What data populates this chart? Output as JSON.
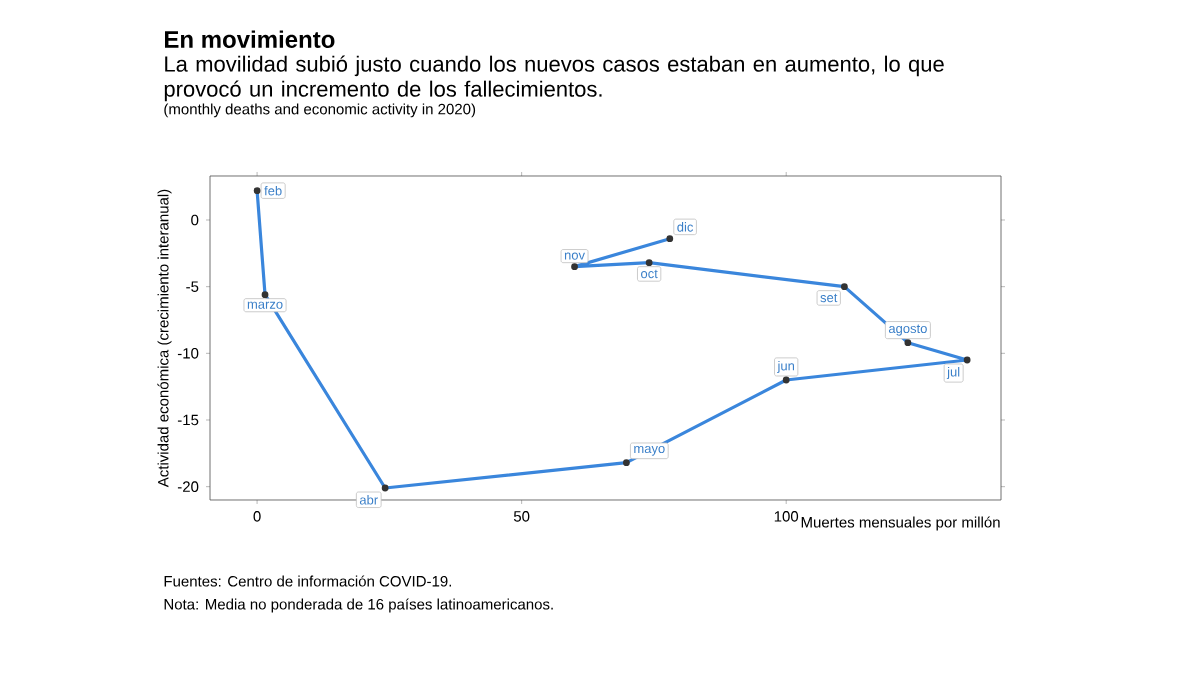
{
  "chart_data": {
    "type": "line",
    "title": "En movimiento",
    "subtitle": "La movilidad subió justo cuando los nuevos casos estaban en aumento, lo que provocó un incremento de los fallecimientos.",
    "xlabel": "Muertes mensuales por millón",
    "ylabel": "Actividad económica (crecimiento interanual)",
    "x": [
      0,
      1.5,
      24.2,
      69.8,
      100,
      134.2,
      123,
      111,
      74.1,
      60,
      78
    ],
    "series": [
      {
        "color": "#3a86dc",
        "values": [
          2.2,
          -5.6,
          -20.1,
          -18.2,
          -12.0,
          -10.5,
          -9.2,
          -5.0,
          -3.2,
          -3.5,
          -1.4
        ]
      }
    ],
    "xlim": [
      -8.9,
      140.6
    ],
    "ylim": [
      -21,
      3.3
    ],
    "xticks": [
      0,
      50,
      100
    ],
    "yticks": [
      -20,
      -15,
      -10,
      -5,
      0
    ],
    "marker": "circle",
    "grid": false,
    "annotations": [
      "(monthly deaths and economic activity in 2020)",
      {
        "text": "feb",
        "x": 0,
        "y": 2.2
      },
      {
        "text": "marzo",
        "x": 1.5,
        "y": -5.6
      },
      {
        "text": "abr",
        "x": 24.2,
        "y": -20.1
      },
      {
        "text": "mayo",
        "x": 69.8,
        "y": -18.2
      },
      {
        "text": "jun",
        "x": 100,
        "y": -12.0
      },
      {
        "text": "jul",
        "x": 134.2,
        "y": -10.5
      },
      {
        "text": "agosto",
        "x": 123,
        "y": -9.2
      },
      {
        "text": "set",
        "x": 111,
        "y": -5.0
      },
      {
        "text": "oct",
        "x": 74.1,
        "y": -3.2
      },
      {
        "text": "nov",
        "x": 60,
        "y": -3.5
      },
      {
        "text": "dic",
        "x": 78,
        "y": -1.4
      },
      "Fuentes: Centro de información COVID-19.",
      "Nota: Media no ponderada de 16 países latinoamericanos."
    ]
  }
}
